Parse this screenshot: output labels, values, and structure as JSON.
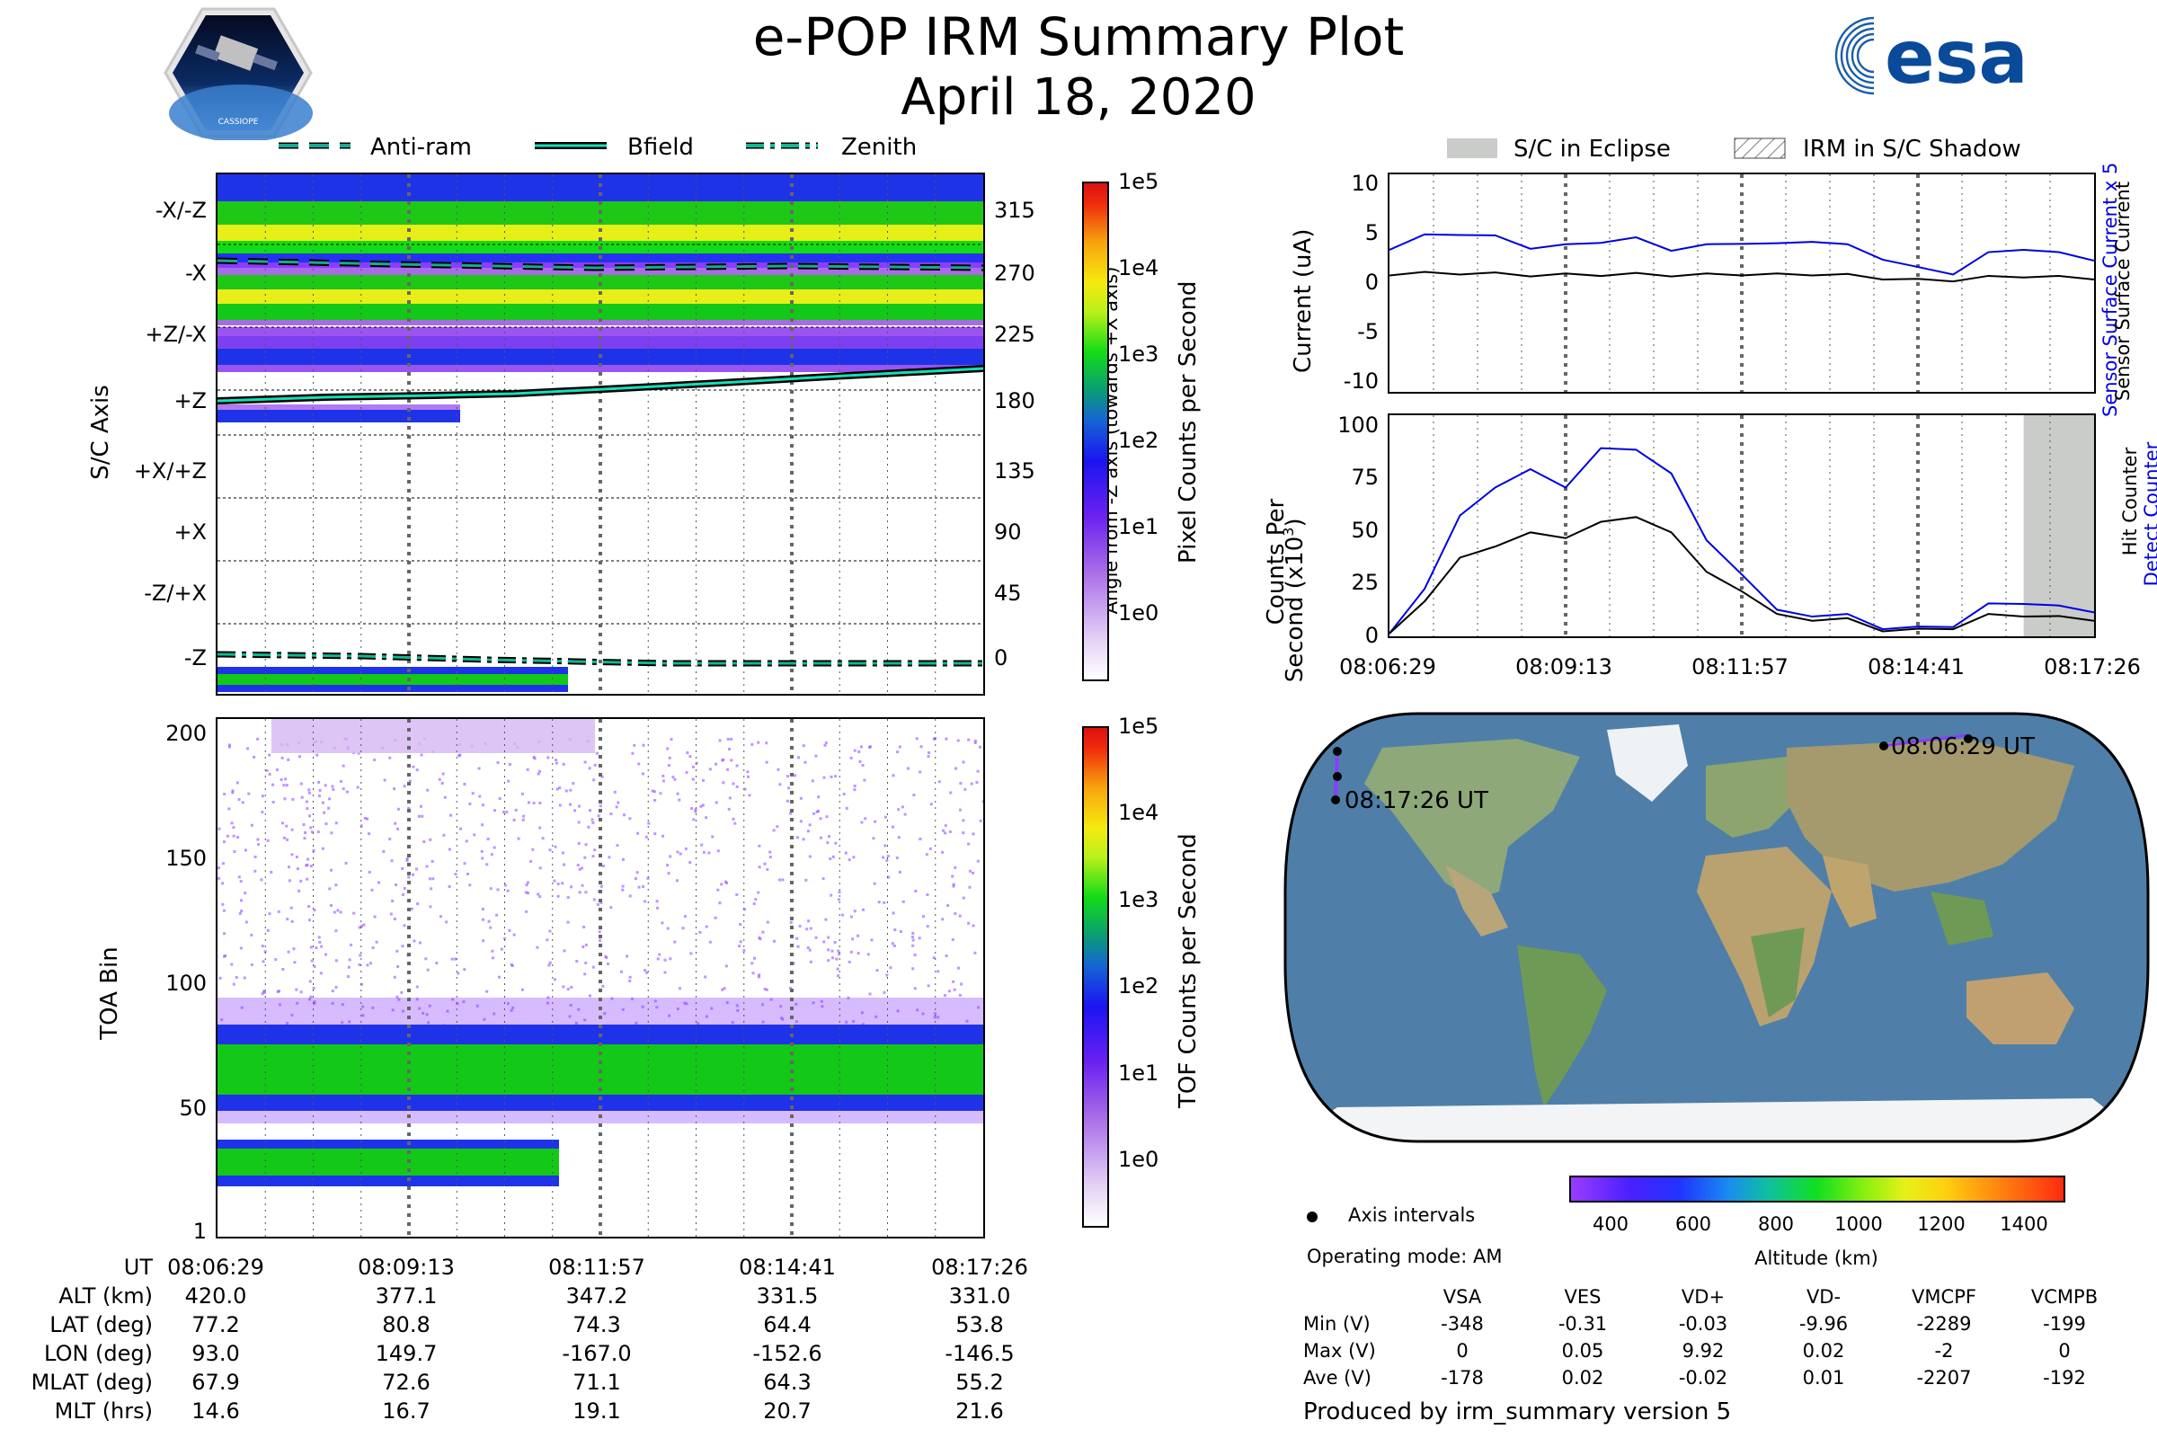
{
  "title": "e-POP IRM Summary Plot",
  "subtitle": "April 18, 2020",
  "logos": {
    "left": "CASSIOPE",
    "right": "esa"
  },
  "legend_top": [
    "Anti-ram",
    "Bfield",
    "Zenith"
  ],
  "legend_right": [
    "S/C in Eclipse",
    "IRM in S/C Shadow"
  ],
  "colors": {
    "antiram": "#1aa890",
    "bfield": "#14e0b8",
    "zenith": "#0fb890",
    "eclipse": "#c9ccc9",
    "sensor_current": "#0000e0",
    "detect_counter": "#0000e0"
  },
  "time_ticks": [
    "08:06:29",
    "08:09:13",
    "08:11:57",
    "08:14:41",
    "08:17:26"
  ],
  "panel1": {
    "ylabel": "S/C Axis",
    "y2label": "Angle from -Z axis (towards +X axis)",
    "axis_labels": [
      "-X/-Z",
      "-X",
      "+Z/-X",
      "+Z",
      "+X/+Z",
      "+X",
      "-Z/+X",
      "-Z"
    ],
    "angle_labels": [
      "315",
      "270",
      "225",
      "180",
      "135",
      "90",
      "45",
      "0"
    ],
    "colorbar_label": "Pixel Counts per Second",
    "colorbar_ticks": [
      "1e5",
      "1e4",
      "1e3",
      "1e2",
      "1e1",
      "1e0"
    ]
  },
  "panel2": {
    "ylabel": "TOA Bin",
    "yticks": [
      "200",
      "150",
      "100",
      "50",
      "1"
    ],
    "colorbar_label": "TOF Counts per Second",
    "colorbar_ticks": [
      "1e5",
      "1e4",
      "1e3",
      "1e2",
      "1e1",
      "1e0"
    ]
  },
  "chart_data": [
    {
      "type": "line",
      "title": "Current",
      "ylabel": "Current (uA)",
      "y2label_1": "Sensor Surface Current x 5",
      "y2label_2": "Sensor Surface Current",
      "ylim": [
        -11,
        11
      ],
      "yticks": [
        "10",
        "5",
        "0",
        "-5",
        "-10"
      ],
      "x": [
        0,
        0.05,
        0.1,
        0.15,
        0.2,
        0.25,
        0.3,
        0.35,
        0.4,
        0.45,
        0.5,
        0.55,
        0.6,
        0.65,
        0.7,
        0.75,
        0.8,
        0.85,
        0.9,
        0.95,
        1.0
      ],
      "series": [
        {
          "name": "Sensor Surface Current x 5",
          "values": [
            3.5,
            4.8,
            5.0,
            4.7,
            3.6,
            3.8,
            4.2,
            4.5,
            3.4,
            3.8,
            4.1,
            3.9,
            4.3,
            3.8,
            2.5,
            1.5,
            1.0,
            3.0,
            3.5,
            3.0,
            2.4
          ]
        },
        {
          "name": "Sensor Surface Current",
          "values": [
            0.9,
            1.0,
            1.0,
            0.95,
            0.8,
            0.85,
            0.85,
            0.9,
            0.8,
            0.85,
            0.9,
            0.85,
            0.9,
            0.8,
            0.5,
            0.3,
            0.3,
            0.6,
            0.7,
            0.6,
            0.5
          ]
        }
      ]
    },
    {
      "type": "line",
      "title": "Counts Per Second",
      "ylabel_1": "Counts Per",
      "ylabel_2": "Second (x10",
      "ylabel_sup": "3",
      "ylabel_end": ")",
      "y2label_1": "Detect Counter",
      "y2label_2": "Hit Counter",
      "ylim": [
        0,
        105
      ],
      "yticks": [
        "100",
        "75",
        "50",
        "25",
        "0"
      ],
      "x": [
        0,
        0.05,
        0.1,
        0.15,
        0.2,
        0.25,
        0.3,
        0.35,
        0.4,
        0.45,
        0.5,
        0.55,
        0.6,
        0.65,
        0.7,
        0.75,
        0.8,
        0.85,
        0.9,
        0.95,
        1.0
      ],
      "series": [
        {
          "name": "Detect Counter",
          "values": [
            2,
            22,
            58,
            70,
            80,
            70,
            90,
            88,
            78,
            45,
            30,
            12,
            10,
            10,
            4,
            4,
            5,
            15,
            16,
            14,
            12
          ]
        },
        {
          "name": "Hit Counter",
          "values": [
            2,
            16,
            38,
            42,
            50,
            46,
            55,
            56,
            50,
            30,
            22,
            10,
            8,
            8,
            3,
            3,
            4,
            10,
            10,
            9,
            8
          ]
        }
      ],
      "eclipse_start": 0.9,
      "shadow_end": 1.0
    }
  ],
  "map": {
    "start_label": "08:06:29 UT",
    "end_label": "08:17:26 UT",
    "legend_marker": "Axis intervals",
    "operating_mode": "Operating mode: AM",
    "altitude_label": "Altitude (km)",
    "altitude_ticks": [
      "400",
      "600",
      "800",
      "1000",
      "1200",
      "1400"
    ]
  },
  "ephemeris": {
    "rows": [
      {
        "label": "UT",
        "values": [
          "08:06:29",
          "08:09:13",
          "08:11:57",
          "08:14:41",
          "08:17:26"
        ]
      },
      {
        "label": "ALT (km)",
        "values": [
          "420.0",
          "377.1",
          "347.2",
          "331.5",
          "331.0"
        ]
      },
      {
        "label": "LAT (deg)",
        "values": [
          "77.2",
          "80.8",
          "74.3",
          "64.4",
          "53.8"
        ]
      },
      {
        "label": "LON (deg)",
        "values": [
          "93.0",
          "149.7",
          "-167.0",
          "-152.6",
          "-146.5"
        ]
      },
      {
        "label": "MLAT (deg)",
        "values": [
          "67.9",
          "72.6",
          "71.1",
          "64.3",
          "55.2"
        ]
      },
      {
        "label": "MLT (hrs)",
        "values": [
          "14.6",
          "16.7",
          "19.1",
          "20.7",
          "21.6"
        ]
      }
    ]
  },
  "stats": {
    "headers": [
      "VSA",
      "VES",
      "VD+",
      "VD-",
      "VMCPF",
      "VCMPB"
    ],
    "rows": [
      {
        "label": "Min (V)",
        "values": [
          "-348",
          "-0.31",
          "-0.03",
          "-9.96",
          "-2289",
          "-199"
        ]
      },
      {
        "label": "Max (V)",
        "values": [
          "0",
          "0.05",
          "9.92",
          "0.02",
          "-2",
          "0"
        ]
      },
      {
        "label": "Ave (V)",
        "values": [
          "-178",
          "0.02",
          "-0.02",
          "0.01",
          "-2207",
          "-192"
        ]
      }
    ]
  },
  "footer": "Produced by irm_summary version 5"
}
